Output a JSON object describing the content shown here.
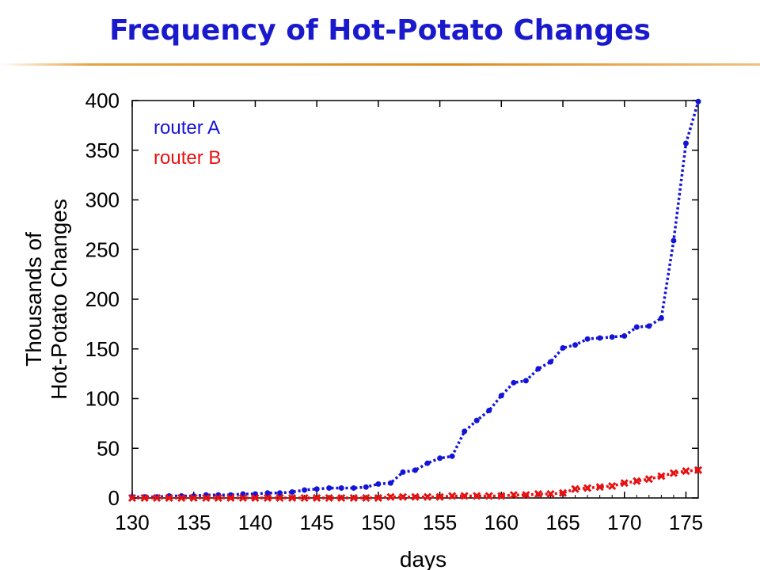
{
  "slide": {
    "title": "Frequency of Hot-Potato Changes"
  },
  "chart_data": {
    "type": "line",
    "title": "",
    "xlabel": "days",
    "ylabel_lines": [
      "Thousands of",
      "Hot-Potato Changes"
    ],
    "xlim": [
      130,
      176
    ],
    "ylim": [
      0,
      400
    ],
    "xticks": [
      130,
      135,
      140,
      145,
      150,
      155,
      160,
      165,
      170,
      175
    ],
    "yticks": [
      0,
      50,
      100,
      150,
      200,
      250,
      300,
      350,
      400
    ],
    "grid": false,
    "legend_position": "top-left",
    "x": [
      130,
      131,
      132,
      133,
      134,
      135,
      136,
      137,
      138,
      139,
      140,
      141,
      142,
      143,
      144,
      145,
      146,
      147,
      148,
      149,
      150,
      151,
      152,
      153,
      154,
      155,
      156,
      157,
      158,
      159,
      160,
      161,
      162,
      163,
      164,
      165,
      166,
      167,
      168,
      169,
      170,
      171,
      172,
      173,
      174,
      175,
      176
    ],
    "series": [
      {
        "name": "router A",
        "color": "#1414d8",
        "values": [
          1,
          1,
          1,
          2,
          2,
          2,
          3,
          3,
          3,
          4,
          4,
          5,
          5,
          6,
          8,
          9,
          10,
          10,
          10,
          11,
          14,
          15,
          26,
          28,
          35,
          40,
          42,
          67,
          78,
          88,
          103,
          116,
          118,
          130,
          137,
          151,
          154,
          160,
          161,
          162,
          163,
          172,
          173,
          181,
          259,
          357,
          399
        ]
      },
      {
        "name": "router B",
        "color": "#e81010",
        "values": [
          0,
          0,
          0,
          0,
          0,
          0,
          0,
          0,
          0,
          0,
          0,
          0,
          0,
          0,
          0,
          0,
          0,
          0,
          0,
          0,
          0,
          1,
          1,
          1,
          1,
          1,
          2,
          2,
          2,
          2,
          2,
          3,
          3,
          4,
          4,
          5,
          9,
          10,
          11,
          12,
          15,
          17,
          19,
          22,
          25,
          27,
          28
        ]
      }
    ]
  }
}
